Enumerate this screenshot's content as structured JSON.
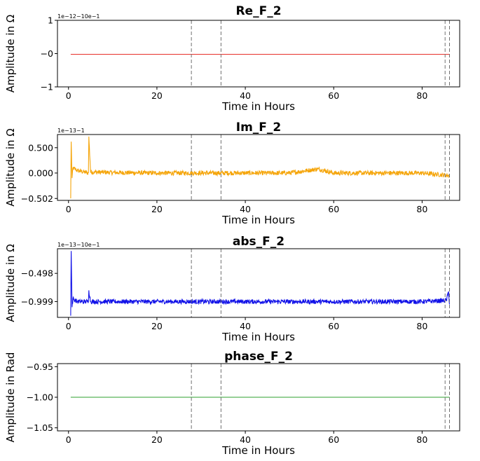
{
  "chart_data": [
    {
      "type": "line",
      "title": "Re_F_2",
      "xlabel": "Time in Hours",
      "ylabel": "Amplitude in Ω",
      "offset_text": "1e−12−10e−1",
      "color": "#e8302a",
      "xlim": [
        -2.5,
        88.5
      ],
      "ylim": [
        -1,
        1
      ],
      "xticks": [
        0,
        20,
        40,
        60,
        80
      ],
      "yticks": [
        1,
        0,
        -1
      ],
      "ytick_labels": [
        "1",
        "−0",
        "−1"
      ],
      "vlines": [
        27.8,
        34.5,
        85.2,
        86.2
      ],
      "series": [
        {
          "name": "Re_F_2",
          "x": [
            0.5,
            10,
            20,
            30,
            40,
            50,
            60,
            70,
            80,
            86.2
          ],
          "y": [
            -0.02,
            -0.02,
            -0.02,
            -0.02,
            -0.02,
            -0.02,
            -0.02,
            -0.02,
            -0.02,
            -0.02
          ]
        }
      ]
    },
    {
      "type": "line",
      "title": "Im_F_2",
      "xlabel": "Time in Hours",
      "ylabel": "Amplitude in Ω",
      "offset_text": "1e−13−1",
      "color": "#f5a50a",
      "xlim": [
        -2.5,
        88.5
      ],
      "ylim": [
        -0.54,
        0.76
      ],
      "xticks": [
        0,
        20,
        40,
        60,
        80
      ],
      "yticks": [
        0.5,
        0,
        -0.502
      ],
      "ytick_labels": [
        "0.500",
        "0.000",
        "−0.502"
      ],
      "vlines": [
        27.8,
        34.5,
        85.2,
        86.2
      ],
      "series": [
        {
          "name": "Im_F_2",
          "x": [
            0.5,
            0.6,
            0.8,
            1,
            2,
            4.5,
            4.6,
            5,
            10,
            20,
            30,
            40,
            50,
            56.5,
            60,
            70,
            80,
            86.2
          ],
          "y": [
            -0.5,
            0.62,
            -0.1,
            0.1,
            0.05,
            0.0,
            0.72,
            0.02,
            0.01,
            0.0,
            0.0,
            0.0,
            0.0,
            0.08,
            0.0,
            0.0,
            0.0,
            -0.05
          ]
        }
      ]
    },
    {
      "type": "line",
      "title": "abs_F_2",
      "xlabel": "Time in Hours",
      "ylabel": "Amplitude in Ω",
      "offset_text": "1e−13−10e−1",
      "color": "#1212e8",
      "xlim": [
        -2.5,
        88.5
      ],
      "ylim": [
        -1.28,
        -0.06
      ],
      "xticks": [
        0,
        20,
        40,
        60,
        80
      ],
      "yticks": [
        -0.498,
        -0.999
      ],
      "ytick_labels": [
        "−0.498",
        "−0.999"
      ],
      "vlines": [
        27.8,
        34.5,
        85.2,
        86.2
      ],
      "series": [
        {
          "name": "abs_F_2",
          "x": [
            0.5,
            0.6,
            0.8,
            1,
            2,
            4.5,
            4.6,
            5,
            10,
            20,
            30,
            40,
            50,
            60,
            70,
            80,
            85.5,
            86,
            86.2
          ],
          "y": [
            -1.25,
            -0.1,
            -1.1,
            -0.95,
            -1.0,
            -1.0,
            -0.8,
            -1.0,
            -1.0,
            -1.0,
            -1.0,
            -1.0,
            -1.0,
            -1.0,
            -1.0,
            -1.0,
            -0.98,
            -0.82,
            -1.05
          ]
        }
      ]
    },
    {
      "type": "line",
      "title": "phase_F_2",
      "xlabel": "Time in Hours",
      "ylabel": "Amplitude in Rad",
      "offset_text": "",
      "color": "#2ca02c",
      "xlim": [
        -2.5,
        88.5
      ],
      "ylim": [
        -1.055,
        -0.945
      ],
      "xticks": [
        0,
        20,
        40,
        60,
        80
      ],
      "yticks": [
        -0.95,
        -1.0,
        -1.05
      ],
      "ytick_labels": [
        "−0.95",
        "−1.00",
        "−1.05"
      ],
      "vlines": [
        27.8,
        34.5,
        85.2,
        86.2
      ],
      "series": [
        {
          "name": "phase_F_2",
          "x": [
            0.5,
            20,
            40,
            60,
            80,
            86.2
          ],
          "y": [
            -1.0,
            -1.0,
            -1.0,
            -1.0,
            -1.0,
            -1.0
          ]
        }
      ]
    }
  ]
}
